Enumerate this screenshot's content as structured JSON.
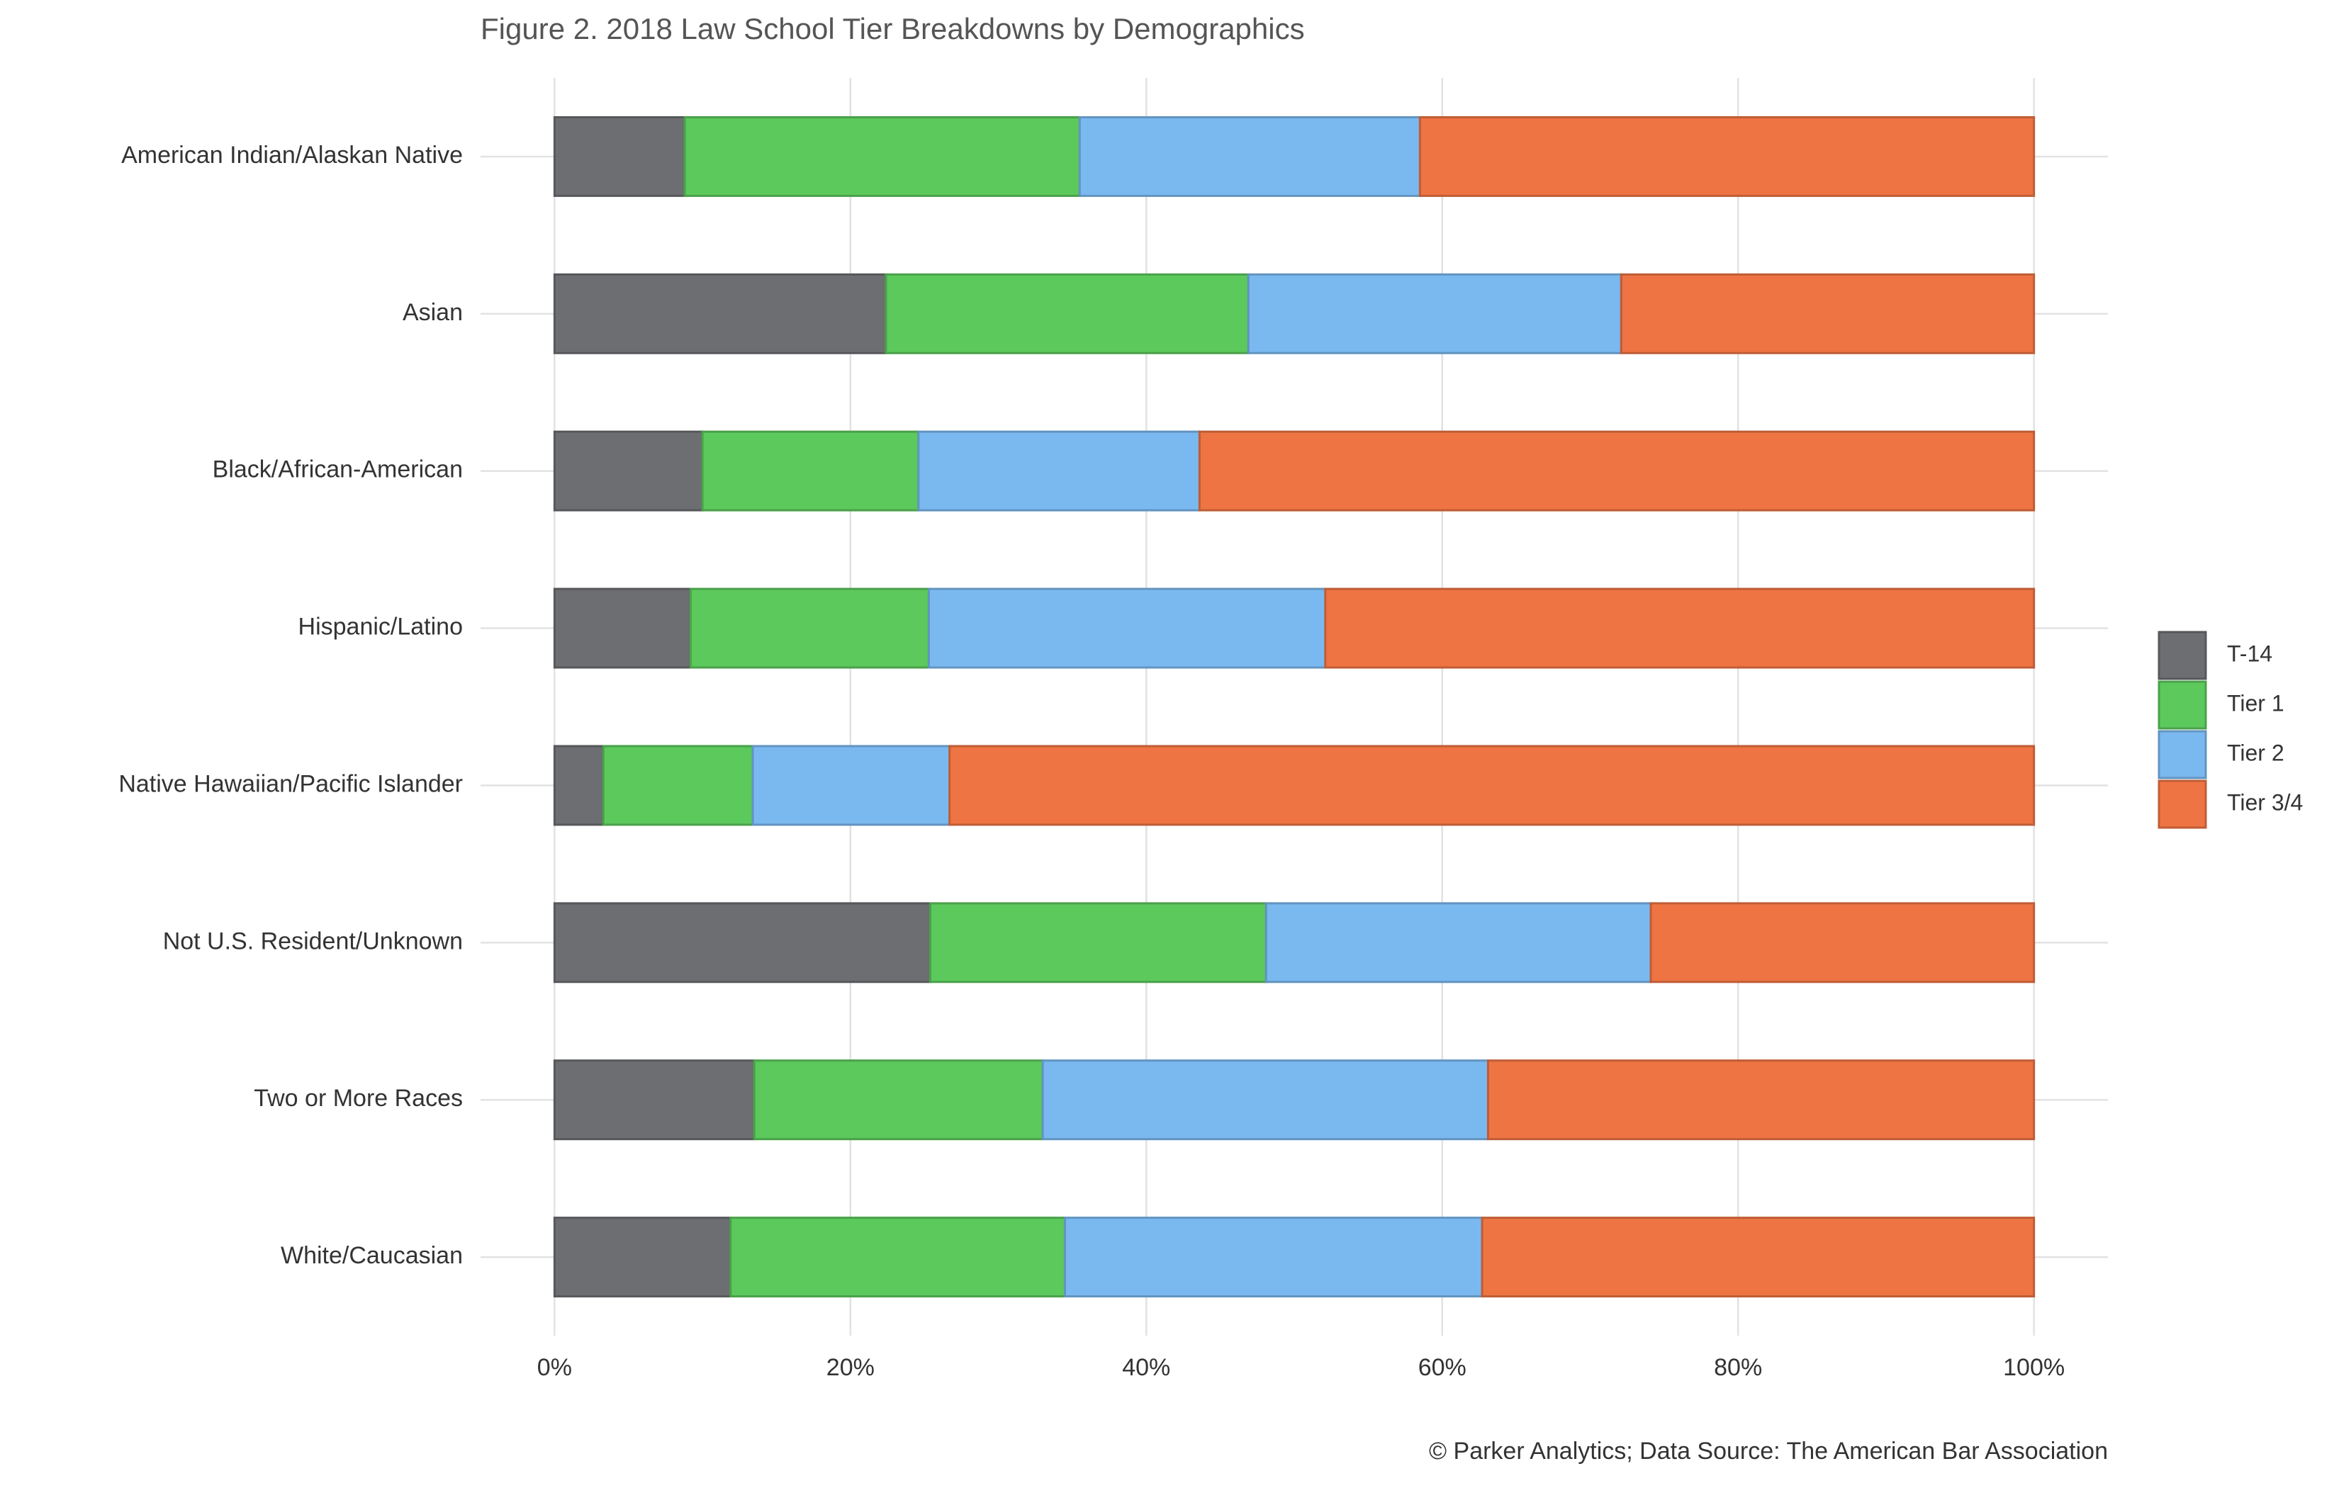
{
  "chart_data": {
    "type": "stacked-barh",
    "title": "Figure 2. 2018 Law School Tier Breakdowns by Demographics",
    "caption": "© Parker Analytics; Data Source: The American Bar Association",
    "categories": [
      "American Indian/Alaskan Native",
      "Asian",
      "Black/African-American",
      "Hispanic/Latino",
      "Native Hawaiian/Pacific Islander",
      "Not U.S. Resident/Unknown",
      "Two or More Races",
      "White/Caucasian"
    ],
    "series": [
      {
        "name": "T-14",
        "color": "#6d6e72",
        "values": [
          8.8,
          22.4,
          10.0,
          9.2,
          3.3,
          25.4,
          13.5,
          11.9
        ]
      },
      {
        "name": "Tier 1",
        "color": "#5cc95c",
        "values": [
          26.7,
          24.5,
          14.6,
          16.1,
          10.1,
          22.7,
          19.5,
          22.6
        ]
      },
      {
        "name": "Tier 2",
        "color": "#7ab9f0",
        "values": [
          23.0,
          25.2,
          19.0,
          26.8,
          13.3,
          26.0,
          30.1,
          28.2
        ]
      },
      {
        "name": "Tier 3/4",
        "color": "#ef7443",
        "values": [
          41.5,
          27.9,
          56.4,
          47.9,
          73.3,
          25.9,
          36.9,
          37.3
        ]
      }
    ],
    "xlim": [
      -5,
      105
    ],
    "xticks": [
      {
        "value": 0,
        "label": "0%"
      },
      {
        "value": 20,
        "label": "20%"
      },
      {
        "value": 40,
        "label": "40%"
      },
      {
        "value": 60,
        "label": "60%"
      },
      {
        "value": 80,
        "label": "80%"
      },
      {
        "value": 100,
        "label": "100%"
      }
    ],
    "grid": true,
    "legend": "right"
  }
}
